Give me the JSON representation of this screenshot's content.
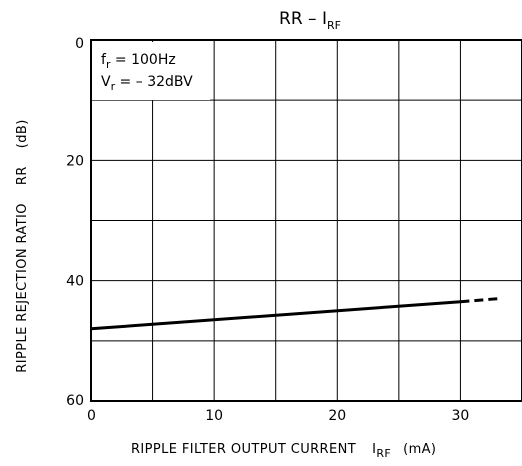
{
  "chart_data": {
    "type": "line",
    "title": {
      "main": "RR  –  I",
      "sub": "RF"
    },
    "xlabel": {
      "text": "RIPPLE FILTER OUTPUT CURRENT",
      "symbol": "I",
      "symbol_sub": "RF",
      "unit": "(mA)"
    },
    "ylabel": {
      "text": "RIPPLE REJECTION RATIO",
      "symbol": "RR",
      "unit": "(dB)"
    },
    "xlim": [
      0,
      35
    ],
    "ylim": [
      0,
      60
    ],
    "y_inverted": true,
    "grid": true,
    "x_grid_step": 5,
    "y_grid_step": 10,
    "x_ticks": [
      0,
      10,
      20,
      30
    ],
    "y_ticks": [
      0,
      20,
      40,
      60
    ],
    "x_tick_labels": [
      "0",
      "10",
      "20",
      "30"
    ],
    "y_tick_labels": [
      "0",
      "20",
      "40",
      "60"
    ],
    "annotations": [
      {
        "var": "f",
        "sub": "r",
        "rest": " = 100Hz"
      },
      {
        "var": "V",
        "sub": "r",
        "rest": " = – 32dBV"
      }
    ],
    "series": [
      {
        "style": "solid",
        "color": "#000000",
        "x": [
          0,
          30
        ],
        "y": [
          48,
          43.5
        ]
      },
      {
        "style": "dashed",
        "color": "#000000",
        "x": [
          30,
          33
        ],
        "y": [
          43.5,
          43.0
        ]
      }
    ]
  }
}
